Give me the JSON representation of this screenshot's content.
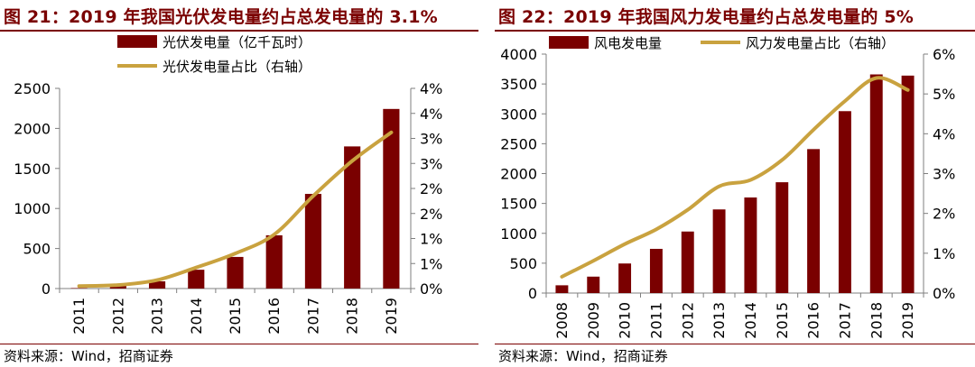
{
  "colors": {
    "bar": "#7a0000",
    "line": "#c9a23f",
    "title": "#7a0000",
    "axis": "#7f7f7f"
  },
  "chart_data": [
    {
      "type": "bar",
      "title": "图 21：2019 年我国光伏发电量约占总发电量的 3.1%",
      "source": "资料来源：Wind，招商证券",
      "categories": [
        "2011",
        "2012",
        "2013",
        "2014",
        "2015",
        "2016",
        "2017",
        "2018",
        "2019"
      ],
      "series": [
        {
          "name": "光伏发电量（亿千瓦时）",
          "type": "bar",
          "axis": "left",
          "values": [
            6,
            36,
            90,
            235,
            395,
            665,
            1182,
            1775,
            2243
          ]
        },
        {
          "name": "光伏发电量占比（右轴）",
          "type": "line",
          "axis": "right",
          "values": [
            0.0005,
            0.0007,
            0.0017,
            0.0042,
            0.007,
            0.0108,
            0.0185,
            0.0255,
            0.0312
          ]
        }
      ],
      "ylim_left": [
        0,
        2500
      ],
      "left_ticks": [
        "0",
        "500",
        "1000",
        "1500",
        "2000",
        "2500"
      ],
      "ylim_right": [
        0,
        0.04
      ],
      "right_ticks": [
        "0%",
        "1%",
        "1%",
        "2%",
        "2%",
        "3%",
        "3%",
        "4%",
        "4%"
      ],
      "legend_position": "top-left"
    },
    {
      "type": "bar",
      "title": "图 22：2019 年我国风力发电量约占总发电量的 5%",
      "source": "资料来源：Wind，招商证券",
      "categories": [
        "2008",
        "2009",
        "2010",
        "2011",
        "2012",
        "2013",
        "2014",
        "2015",
        "2016",
        "2017",
        "2018",
        "2019"
      ],
      "series": [
        {
          "name": "风电发电量",
          "type": "bar",
          "axis": "left",
          "values": [
            130,
            275,
            495,
            740,
            1030,
            1400,
            1600,
            1855,
            2410,
            3045,
            3660,
            3640
          ]
        },
        {
          "name": "风力发电量占比（右轴）",
          "type": "line",
          "axis": "right",
          "values": [
            0.0041,
            0.0081,
            0.0123,
            0.016,
            0.0209,
            0.0268,
            0.0284,
            0.0334,
            0.041,
            0.0482,
            0.054,
            0.051
          ]
        }
      ],
      "ylim_left": [
        0,
        4000
      ],
      "left_ticks": [
        "0",
        "500",
        "1000",
        "1500",
        "2000",
        "2500",
        "3000",
        "3500",
        "4000"
      ],
      "ylim_right": [
        0,
        0.06
      ],
      "right_ticks": [
        "0%",
        "1%",
        "2%",
        "3%",
        "4%",
        "5%",
        "6%"
      ],
      "legend_position": "top"
    }
  ]
}
